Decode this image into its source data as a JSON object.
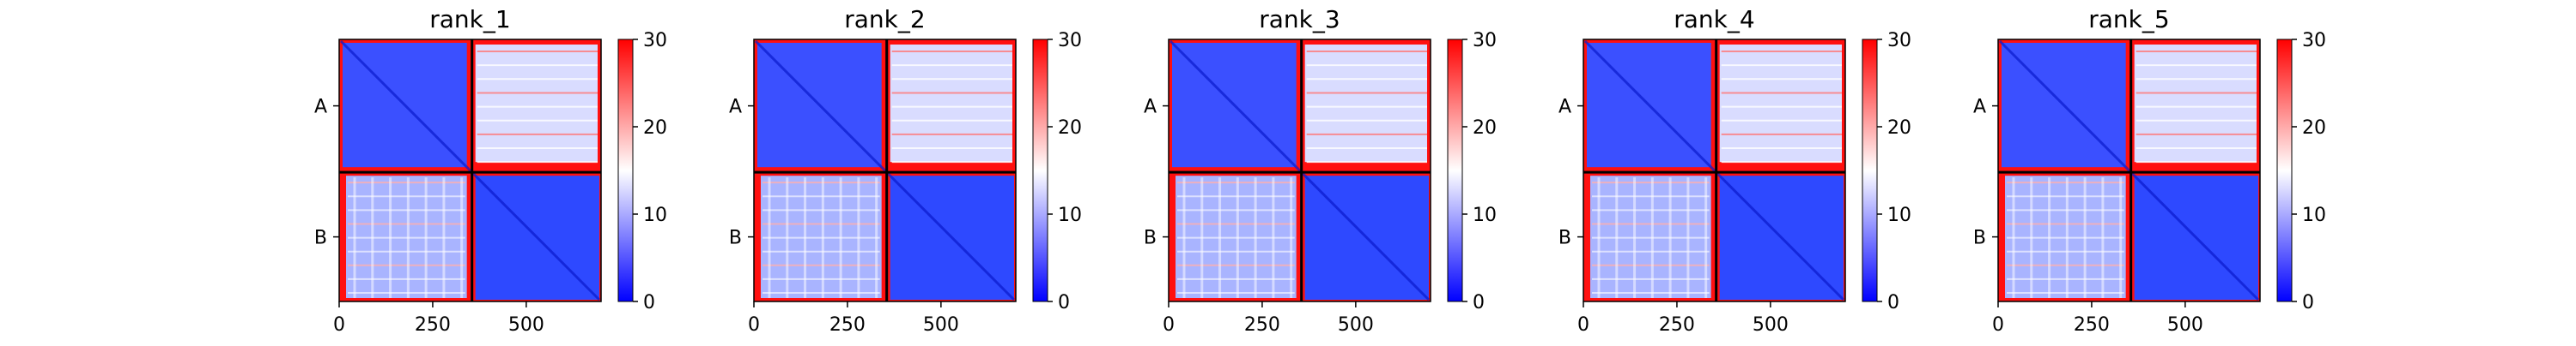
{
  "chart_data": [
    {
      "type": "heatmap",
      "title": "rank_1",
      "x_ticks": [
        "0",
        "250",
        "500"
      ],
      "y_ticks": [
        "A",
        "B"
      ],
      "colorbar_ticks": [
        "0",
        "10",
        "20",
        "30"
      ],
      "colorbar_range": [
        0,
        30
      ],
      "x_range": [
        0,
        700
      ],
      "chain_boundary": 355
    },
    {
      "type": "heatmap",
      "title": "rank_2",
      "x_ticks": [
        "0",
        "250",
        "500"
      ],
      "y_ticks": [
        "A",
        "B"
      ],
      "colorbar_ticks": [
        "0",
        "10",
        "20",
        "30"
      ],
      "colorbar_range": [
        0,
        30
      ],
      "x_range": [
        0,
        700
      ],
      "chain_boundary": 355
    },
    {
      "type": "heatmap",
      "title": "rank_3",
      "x_ticks": [
        "0",
        "250",
        "500"
      ],
      "y_ticks": [
        "A",
        "B"
      ],
      "colorbar_ticks": [
        "0",
        "10",
        "20",
        "30"
      ],
      "colorbar_range": [
        0,
        30
      ],
      "x_range": [
        0,
        700
      ],
      "chain_boundary": 355
    },
    {
      "type": "heatmap",
      "title": "rank_4",
      "x_ticks": [
        "0",
        "250",
        "500"
      ],
      "y_ticks": [
        "A",
        "B"
      ],
      "colorbar_ticks": [
        "0",
        "10",
        "20",
        "30"
      ],
      "colorbar_range": [
        0,
        30
      ],
      "x_range": [
        0,
        700
      ],
      "chain_boundary": 355
    },
    {
      "type": "heatmap",
      "title": "rank_5",
      "x_ticks": [
        "0",
        "250",
        "500"
      ],
      "y_ticks": [
        "A",
        "B"
      ],
      "colorbar_ticks": [
        "0",
        "10",
        "20",
        "30"
      ],
      "colorbar_range": [
        0,
        30
      ],
      "x_range": [
        0,
        700
      ],
      "chain_boundary": 355
    }
  ],
  "colormap": {
    "low": "#0000ff",
    "mid": "#ffffff",
    "high": "#ff0000"
  }
}
